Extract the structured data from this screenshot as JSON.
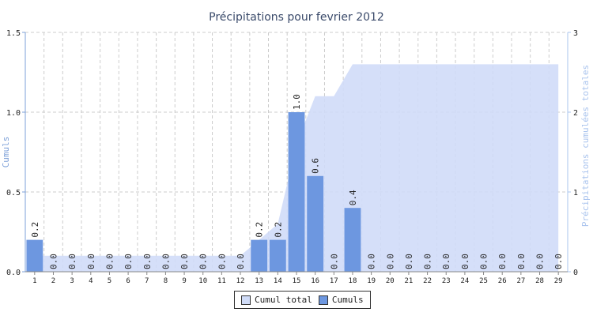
{
  "chart_data": {
    "type": "bar",
    "title": "Précipitations pour fevrier 2012",
    "xlabel": "",
    "ylabel": "Cumuls",
    "y2label": "Précipitations cumulées totales",
    "categories": [
      "1",
      "2",
      "3",
      "4",
      "5",
      "6",
      "7",
      "8",
      "9",
      "10",
      "11",
      "12",
      "13",
      "14",
      "15",
      "16",
      "17",
      "18",
      "19",
      "20",
      "21",
      "22",
      "23",
      "24",
      "25",
      "26",
      "27",
      "28",
      "29"
    ],
    "ylim": [
      0,
      1.5
    ],
    "y2lim": [
      0,
      3
    ],
    "yticks": [
      "0.0",
      "0.5",
      "1.0",
      "1.5"
    ],
    "y2ticks": [
      "0",
      "1",
      "2",
      "3"
    ],
    "grid": true,
    "legend_position": "bottom",
    "series": [
      {
        "name": "Cumul total",
        "type": "area",
        "axis": "right",
        "color": "#d0dcf8",
        "values": [
          0.2,
          0.2,
          0.2,
          0.2,
          0.2,
          0.2,
          0.2,
          0.2,
          0.2,
          0.2,
          0.2,
          0.2,
          0.4,
          0.6,
          1.6,
          2.2,
          2.2,
          2.6,
          2.6,
          2.6,
          2.6,
          2.6,
          2.6,
          2.6,
          2.6,
          2.6,
          2.6,
          2.6,
          2.6
        ]
      },
      {
        "name": "Cumuls",
        "type": "bar",
        "axis": "left",
        "color": "#6d97e0",
        "values": [
          0.2,
          0.0,
          0.0,
          0.0,
          0.0,
          0.0,
          0.0,
          0.0,
          0.0,
          0.0,
          0.0,
          0.0,
          0.2,
          0.2,
          1.0,
          0.6,
          0.0,
          0.4,
          0.0,
          0.0,
          0.0,
          0.0,
          0.0,
          0.0,
          0.0,
          0.0,
          0.0,
          0.0,
          0.0
        ],
        "labels": [
          "0.2",
          "0.0",
          "0.0",
          "0.0",
          "0.0",
          "0.0",
          "0.0",
          "0.0",
          "0.0",
          "0.0",
          "0.0",
          "0.0",
          "0.2",
          "0.2",
          "1.0",
          "0.6",
          "0.0",
          "0.4",
          "0.0",
          "0.0",
          "0.0",
          "0.0",
          "0.0",
          "0.0",
          "0.0",
          "0.0",
          "0.0",
          "0.0",
          "0.0"
        ]
      }
    ]
  },
  "colors": {
    "axis_left": "#7da0d8",
    "axis_right": "#aac4ee",
    "grid": "#cccccc",
    "title": "#3a4a6a"
  }
}
